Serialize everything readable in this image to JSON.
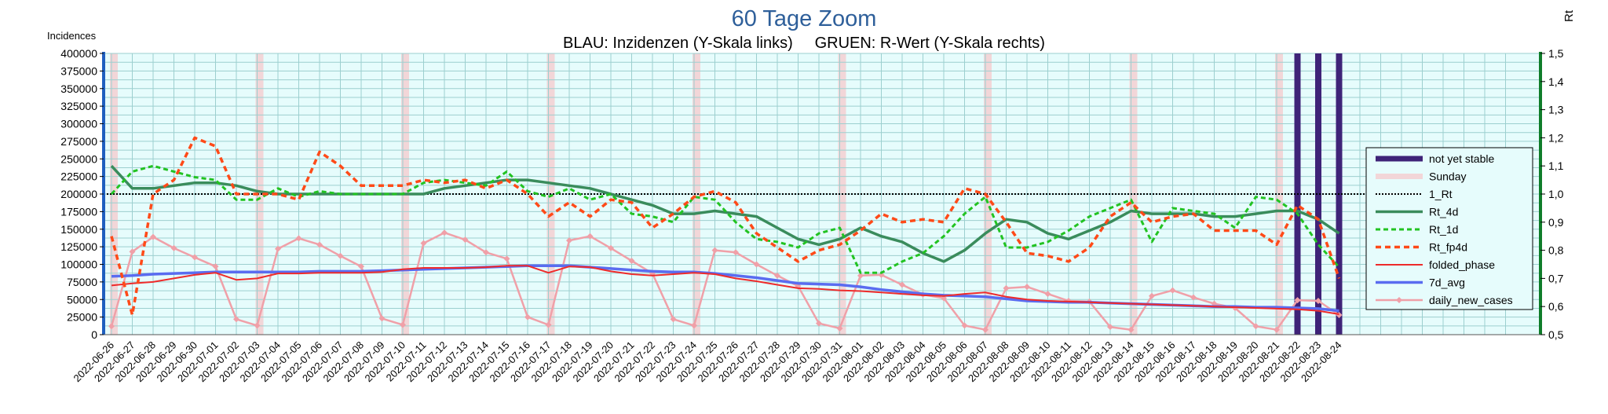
{
  "chart_data": {
    "type": "line",
    "title": "60 Tage Zoom",
    "subtitle": "BLAU: Inzidenzen (Y-Skala links)     GRUEN: R-Wert (Y-Skala rechts)",
    "ylabel_left": "Incidences",
    "ylabel_right": "Rt",
    "ylim_left": [
      0,
      400000
    ],
    "ylim_right": [
      0.5,
      1.5
    ],
    "yticks_left": [
      "0",
      "25000",
      "50000",
      "75000",
      "100000",
      "125000",
      "150000",
      "175000",
      "200000",
      "225000",
      "250000",
      "275000",
      "300000",
      "325000",
      "350000",
      "375000",
      "400000"
    ],
    "yticks_right": [
      "0,5",
      "0,6",
      "0,7",
      "0,8",
      "0,9",
      "1,0",
      "1,1",
      "1,2",
      "1,3",
      "1,4",
      "1,5"
    ],
    "x": [
      "2022-06-26",
      "2022-06-27",
      "2022-06-28",
      "2022-06-29",
      "2022-06-30",
      "2022-07-01",
      "2022-07-02",
      "2022-07-03",
      "2022-07-04",
      "2022-07-05",
      "2022-07-06",
      "2022-07-07",
      "2022-07-08",
      "2022-07-09",
      "2022-07-10",
      "2022-07-11",
      "2022-07-12",
      "2022-07-13",
      "2022-07-14",
      "2022-07-15",
      "2022-07-16",
      "2022-07-17",
      "2022-07-18",
      "2022-07-19",
      "2022-07-20",
      "2022-07-21",
      "2022-07-22",
      "2022-07-23",
      "2022-07-24",
      "2022-07-25",
      "2022-07-26",
      "2022-07-27",
      "2022-07-28",
      "2022-07-29",
      "2022-07-30",
      "2022-07-31",
      "2022-08-01",
      "2022-08-02",
      "2022-08-03",
      "2022-08-04",
      "2022-08-05",
      "2022-08-06",
      "2022-08-07",
      "2022-08-08",
      "2022-08-09",
      "2022-08-10",
      "2022-08-11",
      "2022-08-12",
      "2022-08-13",
      "2022-08-14",
      "2022-08-15",
      "2022-08-16",
      "2022-08-17",
      "2022-08-18",
      "2022-08-19",
      "2022-08-20",
      "2022-08-21",
      "2022-08-22",
      "2022-08-23",
      "2022-08-24"
    ],
    "sundays": [
      "2022-06-26",
      "2022-07-03",
      "2022-07-10",
      "2022-07-17",
      "2022-07-24",
      "2022-07-31",
      "2022-08-07",
      "2022-08-14",
      "2022-08-21"
    ],
    "not_yet_stable": [
      "2022-08-22",
      "2022-08-23",
      "2022-08-24"
    ],
    "one_rt": 1.0,
    "series": [
      {
        "name": "Rt_4d",
        "axis": "right",
        "color": "#3a8c5c",
        "style": "solid",
        "values": [
          1.1,
          1.02,
          1.02,
          1.03,
          1.04,
          1.04,
          1.03,
          1.01,
          1.0,
          1.0,
          1.0,
          1.0,
          1.0,
          1.0,
          1.0,
          1.0,
          1.02,
          1.03,
          1.04,
          1.05,
          1.05,
          1.04,
          1.03,
          1.02,
          1.0,
          0.98,
          0.96,
          0.93,
          0.93,
          0.94,
          0.93,
          0.92,
          0.88,
          0.84,
          0.82,
          0.84,
          0.88,
          0.85,
          0.83,
          0.79,
          0.76,
          0.8,
          0.86,
          0.91,
          0.9,
          0.86,
          0.84,
          0.87,
          0.9,
          0.94,
          0.93,
          0.93,
          0.93,
          0.92,
          0.92,
          0.93,
          0.94,
          0.94,
          0.91,
          0.86
        ]
      },
      {
        "name": "Rt_1d",
        "axis": "right",
        "color": "#22c322",
        "style": "dashed",
        "values": [
          1.0,
          1.08,
          1.1,
          1.08,
          1.06,
          1.05,
          0.98,
          0.98,
          1.02,
          0.99,
          1.01,
          1.0,
          1.0,
          1.0,
          1.0,
          1.04,
          1.05,
          1.04,
          1.03,
          1.08,
          1.01,
          0.99,
          1.02,
          0.98,
          1.0,
          0.93,
          0.92,
          0.9,
          0.99,
          0.98,
          0.9,
          0.84,
          0.83,
          0.81,
          0.86,
          0.88,
          0.72,
          0.72,
          0.76,
          0.79,
          0.85,
          0.93,
          0.99,
          0.81,
          0.81,
          0.83,
          0.87,
          0.92,
          0.95,
          0.98,
          0.83,
          0.95,
          0.94,
          0.93,
          0.88,
          0.99,
          0.98,
          0.93,
          0.82,
          0.74
        ]
      },
      {
        "name": "Rt_fp4d",
        "axis": "right",
        "color": "#ff4a18",
        "style": "dashed",
        "values": [
          0.85,
          0.57,
          1.0,
          1.05,
          1.2,
          1.17,
          1.0,
          1.0,
          1.0,
          0.98,
          1.15,
          1.1,
          1.03,
          1.03,
          1.03,
          1.05,
          1.04,
          1.05,
          1.02,
          1.05,
          1.0,
          0.92,
          0.97,
          0.92,
          0.98,
          0.97,
          0.88,
          0.93,
          0.99,
          1.01,
          0.97,
          0.86,
          0.81,
          0.76,
          0.8,
          0.82,
          0.87,
          0.93,
          0.9,
          0.91,
          0.9,
          1.02,
          1.0,
          0.9,
          0.79,
          0.78,
          0.76,
          0.81,
          0.92,
          0.97,
          0.9,
          0.92,
          0.93,
          0.87,
          0.87,
          0.87,
          0.82,
          0.96,
          0.91,
          0.7
        ]
      },
      {
        "name": "folded_phase",
        "axis": "left",
        "color": "#ee2b2b",
        "style": "solid",
        "values": [
          70000,
          73000,
          75000,
          80000,
          85000,
          88000,
          78000,
          80000,
          87000,
          87000,
          88000,
          88000,
          88000,
          89000,
          93000,
          95000,
          95000,
          95000,
          96000,
          98000,
          98000,
          88000,
          97000,
          96000,
          90000,
          86000,
          84000,
          86000,
          88000,
          86000,
          80000,
          76000,
          71000,
          66000,
          65000,
          63000,
          62000,
          60000,
          58000,
          56000,
          55000,
          58000,
          60000,
          54000,
          50000,
          48000,
          47000,
          46000,
          45000,
          44000,
          43000,
          42000,
          41000,
          40000,
          39000,
          38000,
          37000,
          36000,
          34000,
          29000
        ]
      },
      {
        "name": "7d_avg",
        "axis": "left",
        "color": "#5a6cf0",
        "style": "solid",
        "values": [
          83000,
          84000,
          86000,
          87000,
          88000,
          89000,
          89000,
          89000,
          89000,
          89000,
          90000,
          90000,
          90000,
          91000,
          92000,
          93000,
          94000,
          95000,
          96000,
          97000,
          98000,
          98000,
          98000,
          96000,
          94000,
          92000,
          90000,
          89000,
          89000,
          87000,
          84000,
          81000,
          77000,
          73000,
          72000,
          71000,
          68000,
          64000,
          61000,
          58000,
          56000,
          55000,
          54000,
          51000,
          48000,
          47000,
          46000,
          46000,
          45000,
          44000,
          43000,
          42000,
          41000,
          40000,
          40000,
          39000,
          39000,
          38000,
          37000,
          34000
        ]
      },
      {
        "name": "daily_new_cases",
        "axis": "left",
        "color": "#f0a0a8",
        "style": "solid",
        "values": [
          12000,
          118000,
          139000,
          123000,
          110000,
          97000,
          22000,
          13000,
          122000,
          137000,
          128000,
          112000,
          97000,
          23000,
          14000,
          130000,
          145000,
          135000,
          117000,
          108000,
          25000,
          14000,
          134000,
          140000,
          123000,
          105000,
          87000,
          22000,
          13000,
          120000,
          117000,
          100000,
          84000,
          69000,
          16000,
          9000,
          84000,
          85000,
          71000,
          57000,
          52000,
          13000,
          7000,
          66000,
          68000,
          58000,
          48000,
          47000,
          11000,
          7000,
          55000,
          63000,
          53000,
          44000,
          38000,
          12000,
          7000,
          49000,
          48000,
          28000
        ]
      }
    ],
    "legend": {
      "position": "right",
      "entries": [
        "not yet stable",
        "Sunday",
        "1_Rt",
        "Rt_4d",
        "Rt_1d",
        "Rt_fp4d",
        "folded_phase",
        "7d_avg",
        "daily_new_cases"
      ]
    },
    "colors": {
      "plot_bg": "#e6fcfc",
      "grid": "#9ccfcf",
      "left_axis": "#1f5fbf",
      "right_axis": "#0f7d2a",
      "not_yet_stable": "#3f2378",
      "sunday": "#f2d6d8"
    }
  }
}
